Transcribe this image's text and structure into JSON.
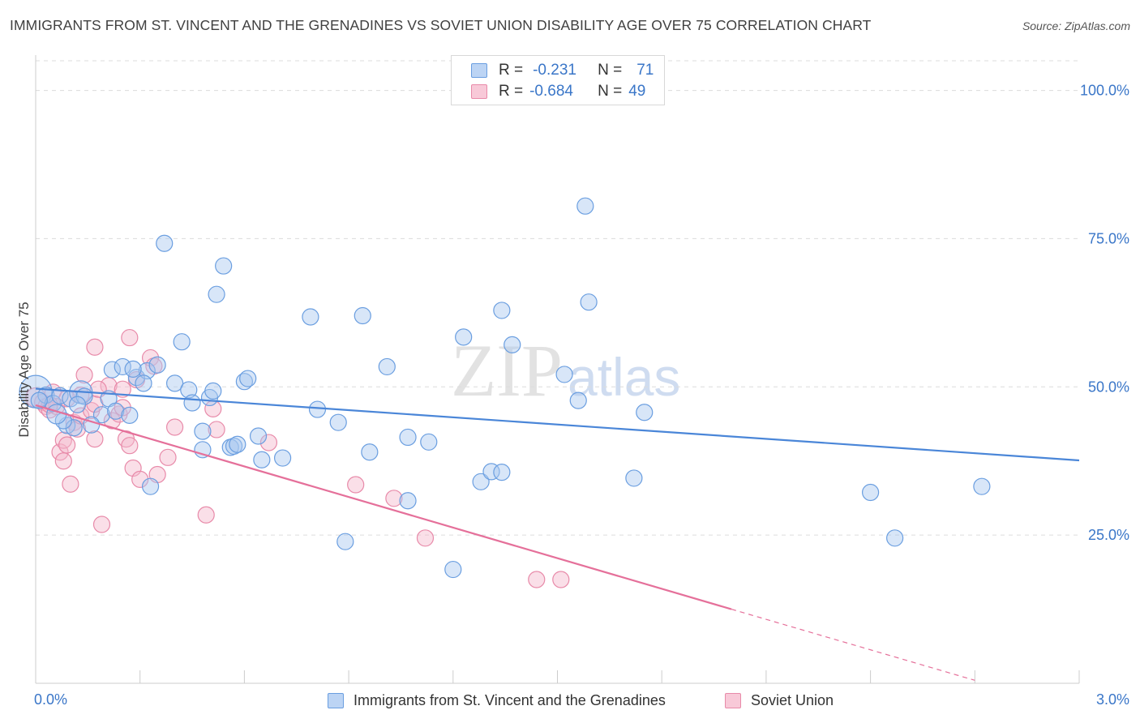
{
  "header": {
    "title": "IMMIGRANTS FROM ST. VINCENT AND THE GRENADINES VS SOVIET UNION DISABILITY AGE OVER 75 CORRELATION CHART",
    "source": "Source: ZipAtlas.com"
  },
  "colors": {
    "blue": "#4a86d8",
    "blue_fill": "#a9c8f0",
    "pink": "#e5709a",
    "pink_fill": "#f4b9cc",
    "axis_label": "#3a76c8",
    "grid": "#dcdcdc"
  },
  "legend": {
    "rows": [
      {
        "r_label": "R =",
        "r_value": "-0.231",
        "n_label": "N =",
        "n_value": "71"
      },
      {
        "r_label": "R =",
        "r_value": "-0.684",
        "n_label": "N =",
        "n_value": "49"
      }
    ]
  },
  "watermark": {
    "zip": "ZIP",
    "atlas": "atlas"
  },
  "chart_data": {
    "type": "scatter",
    "title": "IMMIGRANTS FROM ST. VINCENT AND THE GRENADINES VS SOVIET UNION DISABILITY AGE OVER 75 CORRELATION CHART",
    "xlabel": "",
    "ylabel": "Disability Age Over 75",
    "xlim": [
      0,
      3.0
    ],
    "ylim": [
      0,
      105
    ],
    "x_tick_labels": [
      "0.0%",
      "3.0%"
    ],
    "y_ticks": [
      25,
      50,
      75,
      100
    ],
    "y_tick_labels": [
      "25.0%",
      "50.0%",
      "75.0%",
      "100.0%"
    ],
    "grid": true,
    "legend_position": "top-center",
    "series": [
      {
        "name": "Immigrants from St. Vincent and the Grenadines",
        "color": "#4a86d8",
        "trend": {
          "x": [
            0.0,
            3.0
          ],
          "y": [
            49.7,
            37.6
          ],
          "dashed_beyond": null
        },
        "points": [
          [
            0.0,
            49.2,
            20
          ],
          [
            0.03,
            48.6,
            10
          ],
          [
            0.05,
            47.2,
            10
          ],
          [
            0.07,
            48.5,
            10
          ],
          [
            0.09,
            43.5,
            10
          ],
          [
            0.11,
            43.1,
            10
          ],
          [
            0.1,
            48.0,
            10
          ],
          [
            0.13,
            49.1,
            14
          ],
          [
            0.14,
            48.4,
            10
          ],
          [
            0.19,
            45.3,
            10
          ],
          [
            0.21,
            48.0,
            10
          ],
          [
            0.23,
            45.9,
            10
          ],
          [
            0.27,
            45.2,
            10
          ],
          [
            0.22,
            52.9,
            10
          ],
          [
            0.25,
            53.4,
            10
          ],
          [
            0.29,
            51.6,
            10
          ],
          [
            0.32,
            52.7,
            10
          ],
          [
            0.35,
            53.7,
            10
          ],
          [
            0.31,
            50.6,
            10
          ],
          [
            0.33,
            33.2,
            10
          ],
          [
            0.37,
            74.2,
            10
          ],
          [
            0.4,
            50.6,
            10
          ],
          [
            0.42,
            57.6,
            10
          ],
          [
            0.44,
            49.5,
            10
          ],
          [
            0.45,
            47.3,
            10
          ],
          [
            0.48,
            42.5,
            10
          ],
          [
            0.48,
            39.4,
            10
          ],
          [
            0.5,
            48.2,
            10
          ],
          [
            0.51,
            49.3,
            10
          ],
          [
            0.52,
            65.6,
            10
          ],
          [
            0.54,
            70.4,
            10
          ],
          [
            0.56,
            39.8,
            10
          ],
          [
            0.57,
            40.0,
            10
          ],
          [
            0.58,
            40.3,
            10
          ],
          [
            0.6,
            50.9,
            10
          ],
          [
            0.61,
            51.4,
            10
          ],
          [
            0.64,
            41.7,
            10
          ],
          [
            0.65,
            37.7,
            10
          ],
          [
            0.71,
            38.0,
            10
          ],
          [
            0.79,
            61.8,
            10
          ],
          [
            0.81,
            46.2,
            10
          ],
          [
            0.87,
            44.0,
            10
          ],
          [
            0.89,
            23.9,
            10
          ],
          [
            0.94,
            62.0,
            10
          ],
          [
            0.96,
            39.0,
            10
          ],
          [
            1.01,
            53.4,
            10
          ],
          [
            1.07,
            30.8,
            10
          ],
          [
            1.07,
            41.5,
            10
          ],
          [
            1.13,
            40.7,
            10
          ],
          [
            1.2,
            19.2,
            10
          ],
          [
            1.23,
            58.4,
            10
          ],
          [
            1.28,
            34.0,
            10
          ],
          [
            1.31,
            35.7,
            10
          ],
          [
            1.34,
            35.6,
            10
          ],
          [
            1.34,
            62.9,
            10
          ],
          [
            1.37,
            57.1,
            10
          ],
          [
            1.52,
            52.1,
            10
          ],
          [
            1.56,
            47.7,
            10
          ],
          [
            1.58,
            80.5,
            10
          ],
          [
            1.59,
            64.3,
            10
          ],
          [
            1.72,
            34.6,
            10
          ],
          [
            1.75,
            45.7,
            10
          ],
          [
            2.4,
            32.2,
            10
          ],
          [
            2.47,
            24.5,
            10
          ],
          [
            2.72,
            33.2,
            10
          ],
          [
            0.08,
            44.3,
            10
          ],
          [
            0.16,
            43.6,
            10
          ],
          [
            0.06,
            45.4,
            12
          ],
          [
            0.01,
            47.7,
            10
          ],
          [
            0.12,
            47.0,
            10
          ],
          [
            0.28,
            53.0,
            10
          ]
        ]
      },
      {
        "name": "Soviet Union",
        "color": "#e5709a",
        "trend": {
          "x": [
            0.0,
            2.0
          ],
          "y": [
            46.9,
            12.5
          ],
          "dashed_to": [
            2.7,
            0.5
          ]
        },
        "points": [
          [
            0.0,
            48.2,
            12
          ],
          [
            0.02,
            47.4,
            10
          ],
          [
            0.03,
            46.7,
            10
          ],
          [
            0.04,
            46.1,
            10
          ],
          [
            0.05,
            49.1,
            10
          ],
          [
            0.06,
            46.7,
            10
          ],
          [
            0.07,
            39.0,
            10
          ],
          [
            0.08,
            41.0,
            10
          ],
          [
            0.08,
            37.5,
            10
          ],
          [
            0.09,
            40.2,
            10
          ],
          [
            0.1,
            33.6,
            10
          ],
          [
            0.11,
            44.0,
            10
          ],
          [
            0.12,
            42.9,
            10
          ],
          [
            0.13,
            45.1,
            10
          ],
          [
            0.14,
            52.0,
            10
          ],
          [
            0.16,
            46.0,
            10
          ],
          [
            0.17,
            47.1,
            10
          ],
          [
            0.17,
            41.2,
            10
          ],
          [
            0.17,
            56.7,
            10
          ],
          [
            0.19,
            26.8,
            10
          ],
          [
            0.21,
            50.2,
            10
          ],
          [
            0.22,
            44.3,
            10
          ],
          [
            0.24,
            45.4,
            10
          ],
          [
            0.25,
            49.6,
            10
          ],
          [
            0.26,
            41.2,
            10
          ],
          [
            0.27,
            40.1,
            10
          ],
          [
            0.27,
            58.3,
            10
          ],
          [
            0.28,
            36.3,
            10
          ],
          [
            0.29,
            51.2,
            10
          ],
          [
            0.3,
            34.4,
            10
          ],
          [
            0.33,
            54.9,
            10
          ],
          [
            0.34,
            53.5,
            10
          ],
          [
            0.35,
            35.2,
            10
          ],
          [
            0.38,
            38.1,
            10
          ],
          [
            0.4,
            43.2,
            10
          ],
          [
            0.49,
            28.4,
            10
          ],
          [
            0.51,
            46.3,
            10
          ],
          [
            0.52,
            42.8,
            10
          ],
          [
            0.67,
            40.6,
            10
          ],
          [
            0.92,
            33.5,
            10
          ],
          [
            1.03,
            31.2,
            10
          ],
          [
            1.12,
            24.5,
            10
          ],
          [
            1.44,
            17.5,
            10
          ],
          [
            1.51,
            17.5,
            10
          ],
          [
            0.13,
            48.6,
            10
          ],
          [
            0.18,
            49.6,
            10
          ],
          [
            0.09,
            48.0,
            10
          ],
          [
            0.04,
            47.0,
            10
          ],
          [
            0.25,
            46.5,
            10
          ]
        ]
      }
    ]
  }
}
